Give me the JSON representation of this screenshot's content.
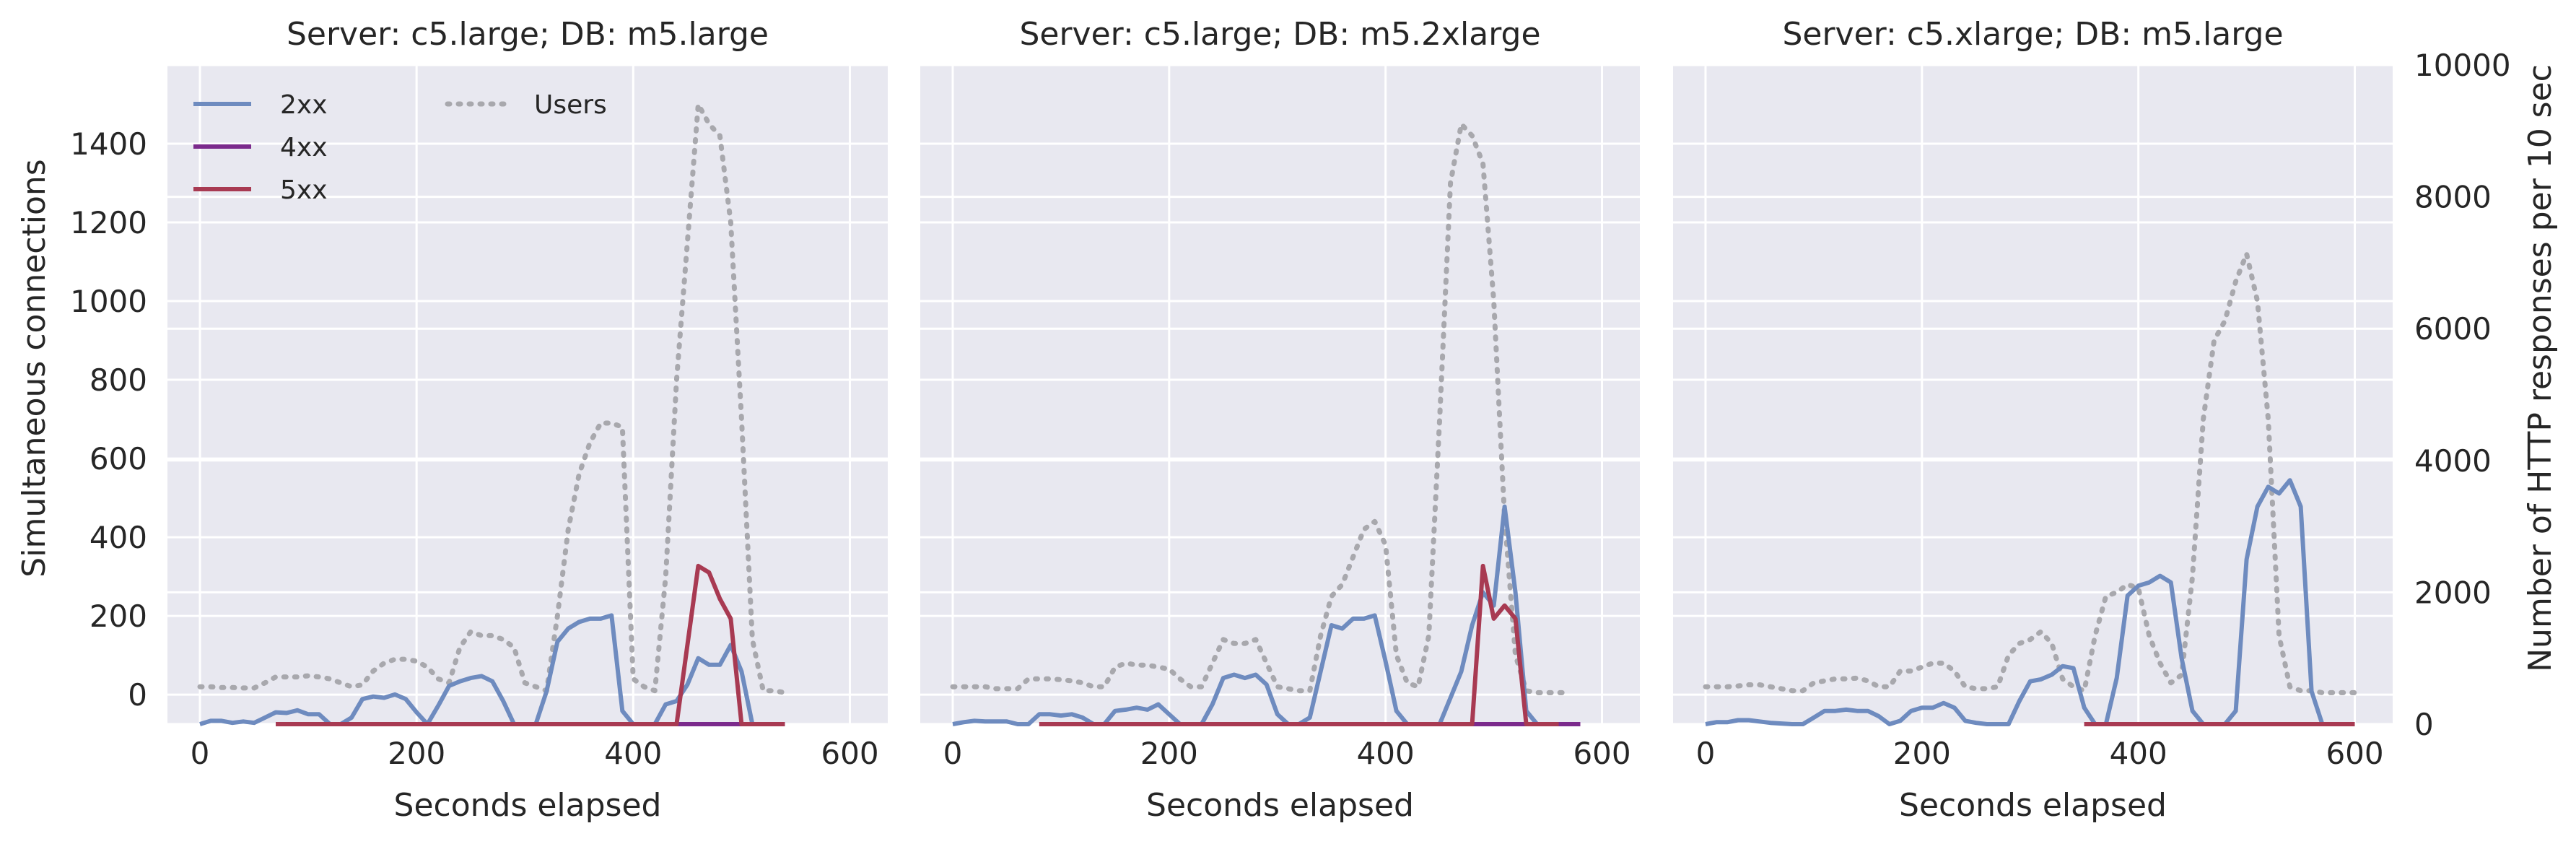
{
  "figure": {
    "left_ylabel": "Simultaneous connections",
    "right_ylabel": "Number of HTTP responses per 10 sec"
  },
  "style": {
    "panel_bg": "#e8e8f0",
    "grid": "#ffffff",
    "colors": {
      "2xx": "#6e8bbf",
      "4xx": "#7b2a8c",
      "5xx": "#a83a52",
      "Users": "#a8a8ad"
    }
  },
  "chart_data": [
    {
      "type": "line",
      "title": "Server: c5.large; DB: m5.large",
      "xlabel": "Seconds elapsed",
      "xlim": [
        -30,
        635
      ],
      "xticks": [
        0,
        200,
        400,
        600
      ],
      "ylim_left": [
        -75,
        1600
      ],
      "yticks_left": [
        0,
        200,
        400,
        600,
        800,
        1000,
        1200,
        1400
      ],
      "ylim_right": [
        0,
        10000
      ],
      "legend": {
        "position": "upper-left",
        "entries": [
          "2xx",
          "4xx",
          "5xx",
          "Users"
        ]
      },
      "series": [
        {
          "name": "Users",
          "axis": "left",
          "style": "dotted",
          "x": [
            0,
            10,
            20,
            30,
            40,
            50,
            60,
            70,
            80,
            90,
            100,
            110,
            120,
            130,
            140,
            150,
            160,
            170,
            180,
            190,
            200,
            210,
            220,
            230,
            240,
            250,
            260,
            270,
            280,
            290,
            300,
            310,
            320,
            330,
            340,
            350,
            360,
            370,
            380,
            390,
            400,
            410,
            420,
            430,
            440,
            450,
            460,
            470,
            480,
            490,
            500,
            510,
            520,
            530,
            540
          ],
          "y": [
            20,
            20,
            18,
            18,
            17,
            17,
            30,
            45,
            45,
            45,
            48,
            45,
            40,
            30,
            20,
            25,
            60,
            80,
            90,
            90,
            85,
            70,
            40,
            30,
            120,
            160,
            150,
            150,
            140,
            120,
            30,
            20,
            10,
            200,
            420,
            560,
            640,
            690,
            690,
            680,
            40,
            20,
            10,
            300,
            800,
            1150,
            1500,
            1450,
            1420,
            1200,
            700,
            140,
            10,
            10,
            5
          ]
        },
        {
          "name": "2xx",
          "axis": "right",
          "x": [
            0,
            10,
            20,
            30,
            40,
            50,
            60,
            70,
            80,
            90,
            100,
            110,
            120,
            130,
            140,
            150,
            160,
            170,
            180,
            190,
            200,
            210,
            220,
            230,
            240,
            250,
            260,
            270,
            280,
            290,
            300,
            310,
            320,
            330,
            340,
            350,
            360,
            370,
            380,
            390,
            400,
            410,
            420,
            430,
            440,
            450,
            460,
            470,
            480,
            490,
            500,
            510,
            520,
            530,
            540
          ],
          "y": [
            0,
            50,
            50,
            20,
            40,
            20,
            100,
            180,
            170,
            210,
            150,
            150,
            0,
            0,
            100,
            380,
            420,
            400,
            450,
            380,
            180,
            0,
            280,
            580,
            650,
            700,
            730,
            650,
            350,
            0,
            0,
            0,
            500,
            1250,
            1450,
            1550,
            1600,
            1600,
            1650,
            200,
            0,
            0,
            0,
            300,
            350,
            600,
            1000,
            900,
            900,
            1200,
            800,
            0,
            0,
            0,
            0
          ]
        },
        {
          "name": "4xx",
          "axis": "right",
          "x": [
            70,
            540
          ],
          "y": [
            0,
            0
          ]
        },
        {
          "name": "5xx",
          "axis": "right",
          "x": [
            70,
            400,
            410,
            420,
            430,
            440,
            450,
            460,
            470,
            480,
            490,
            500,
            510,
            520,
            530,
            540
          ],
          "y": [
            0,
            0,
            0,
            0,
            0,
            0,
            1200,
            2400,
            2300,
            1900,
            1600,
            0,
            0,
            0,
            0,
            0
          ]
        }
      ]
    },
    {
      "type": "line",
      "title": "Server: c5.large; DB: m5.2xlarge",
      "xlabel": "Seconds elapsed",
      "xlim": [
        -30,
        635
      ],
      "xticks": [
        0,
        200,
        400,
        600
      ],
      "ylim_left": [
        -75,
        1600
      ],
      "ylim_right": [
        0,
        10000
      ],
      "series": [
        {
          "name": "Users",
          "axis": "left",
          "style": "dotted",
          "x": [
            0,
            10,
            20,
            30,
            40,
            50,
            60,
            70,
            80,
            90,
            100,
            110,
            120,
            130,
            140,
            150,
            160,
            170,
            180,
            190,
            200,
            210,
            220,
            230,
            240,
            250,
            260,
            270,
            280,
            290,
            300,
            310,
            320,
            330,
            340,
            350,
            360,
            370,
            380,
            390,
            400,
            410,
            420,
            430,
            440,
            450,
            460,
            470,
            480,
            490,
            500,
            510,
            520,
            530,
            540,
            550,
            560,
            570
          ],
          "y": [
            20,
            20,
            20,
            20,
            15,
            15,
            15,
            40,
            40,
            40,
            38,
            35,
            30,
            20,
            20,
            70,
            80,
            75,
            75,
            70,
            65,
            40,
            20,
            20,
            80,
            140,
            130,
            130,
            140,
            80,
            20,
            15,
            10,
            10,
            150,
            250,
            280,
            350,
            420,
            440,
            380,
            100,
            30,
            20,
            150,
            700,
            1300,
            1450,
            1420,
            1350,
            1000,
            450,
            100,
            10,
            5,
            5,
            5,
            5
          ],
          "x_note": "offset panel"
        },
        {
          "name": "2xx",
          "axis": "right",
          "x": [
            0,
            10,
            20,
            30,
            40,
            50,
            60,
            70,
            80,
            90,
            100,
            110,
            120,
            130,
            140,
            150,
            160,
            170,
            180,
            190,
            200,
            210,
            220,
            230,
            240,
            250,
            260,
            270,
            280,
            290,
            300,
            310,
            320,
            330,
            340,
            350,
            360,
            370,
            380,
            390,
            400,
            410,
            420,
            430,
            440,
            450,
            460,
            470,
            480,
            490,
            500,
            510,
            520,
            530,
            540,
            550,
            560
          ],
          "y": [
            0,
            30,
            50,
            40,
            40,
            40,
            0,
            0,
            150,
            150,
            130,
            150,
            100,
            0,
            0,
            200,
            220,
            250,
            220,
            300,
            150,
            0,
            0,
            0,
            300,
            700,
            750,
            700,
            750,
            600,
            150,
            0,
            0,
            100,
            800,
            1500,
            1450,
            1600,
            1600,
            1650,
            950,
            200,
            0,
            0,
            0,
            0,
            400,
            800,
            1500,
            2000,
            1800,
            3300,
            2000,
            200,
            0,
            0,
            0
          ]
        },
        {
          "name": "4xx",
          "axis": "right",
          "x": [
            80,
            580
          ],
          "y": [
            0,
            0
          ]
        },
        {
          "name": "5xx",
          "axis": "right",
          "x": [
            80,
            450,
            460,
            470,
            480,
            490,
            500,
            510,
            520,
            530,
            540,
            550,
            560
          ],
          "y": [
            0,
            0,
            0,
            0,
            0,
            2400,
            1600,
            1800,
            1600,
            0,
            0,
            0,
            0
          ]
        }
      ]
    },
    {
      "type": "line",
      "title": "Server: c5.xlarge; DB: m5.large",
      "xlabel": "Seconds elapsed",
      "xlim": [
        -30,
        635
      ],
      "xticks": [
        0,
        200,
        400,
        600
      ],
      "ylim_left": [
        -75,
        1600
      ],
      "ylim_right": [
        0,
        10000
      ],
      "yticks_right": [
        0,
        2000,
        4000,
        6000,
        8000,
        10000
      ],
      "series": [
        {
          "name": "Users",
          "axis": "left",
          "style": "dotted",
          "x": [
            0,
            10,
            20,
            30,
            40,
            50,
            60,
            70,
            80,
            90,
            100,
            110,
            120,
            130,
            140,
            150,
            160,
            170,
            180,
            190,
            200,
            210,
            220,
            230,
            240,
            250,
            260,
            270,
            280,
            290,
            300,
            310,
            320,
            330,
            340,
            350,
            360,
            370,
            380,
            390,
            400,
            410,
            420,
            430,
            440,
            450,
            460,
            470,
            480,
            490,
            500,
            510,
            520,
            530,
            540,
            550,
            560,
            570,
            580,
            590,
            600
          ],
          "y": [
            20,
            20,
            20,
            22,
            25,
            25,
            20,
            15,
            10,
            10,
            30,
            35,
            40,
            40,
            42,
            35,
            20,
            20,
            60,
            60,
            70,
            80,
            80,
            60,
            20,
            15,
            15,
            20,
            100,
            130,
            140,
            160,
            130,
            40,
            20,
            10,
            150,
            250,
            260,
            280,
            270,
            150,
            80,
            30,
            50,
            300,
            700,
            900,
            950,
            1050,
            1120,
            1000,
            700,
            150,
            20,
            10,
            10,
            5,
            5,
            5,
            5
          ]
        },
        {
          "name": "2xx",
          "axis": "right",
          "x": [
            0,
            10,
            20,
            30,
            40,
            50,
            60,
            70,
            80,
            90,
            100,
            110,
            120,
            130,
            140,
            150,
            160,
            170,
            180,
            190,
            200,
            210,
            220,
            230,
            240,
            250,
            260,
            270,
            280,
            290,
            300,
            310,
            320,
            330,
            340,
            350,
            360,
            370,
            380,
            390,
            400,
            410,
            420,
            430,
            440,
            450,
            460,
            470,
            480,
            490,
            500,
            510,
            520,
            530,
            540,
            550,
            560,
            570,
            580,
            590,
            600
          ],
          "y": [
            0,
            30,
            30,
            60,
            60,
            40,
            20,
            10,
            0,
            0,
            100,
            200,
            200,
            220,
            200,
            200,
            120,
            0,
            50,
            200,
            250,
            250,
            320,
            250,
            50,
            20,
            0,
            0,
            0,
            350,
            650,
            680,
            750,
            880,
            850,
            250,
            0,
            0,
            700,
            1950,
            2100,
            2150,
            2250,
            2150,
            1000,
            200,
            0,
            0,
            0,
            200,
            2500,
            3300,
            3600,
            3500,
            3700,
            3300,
            500,
            0,
            0,
            0,
            0
          ]
        },
        {
          "name": "4xx",
          "axis": "right",
          "x": [
            350,
            600
          ],
          "y": [
            0,
            0
          ]
        },
        {
          "name": "5xx",
          "axis": "right",
          "x": [
            350,
            600
          ],
          "y": [
            0,
            0
          ]
        }
      ]
    }
  ]
}
